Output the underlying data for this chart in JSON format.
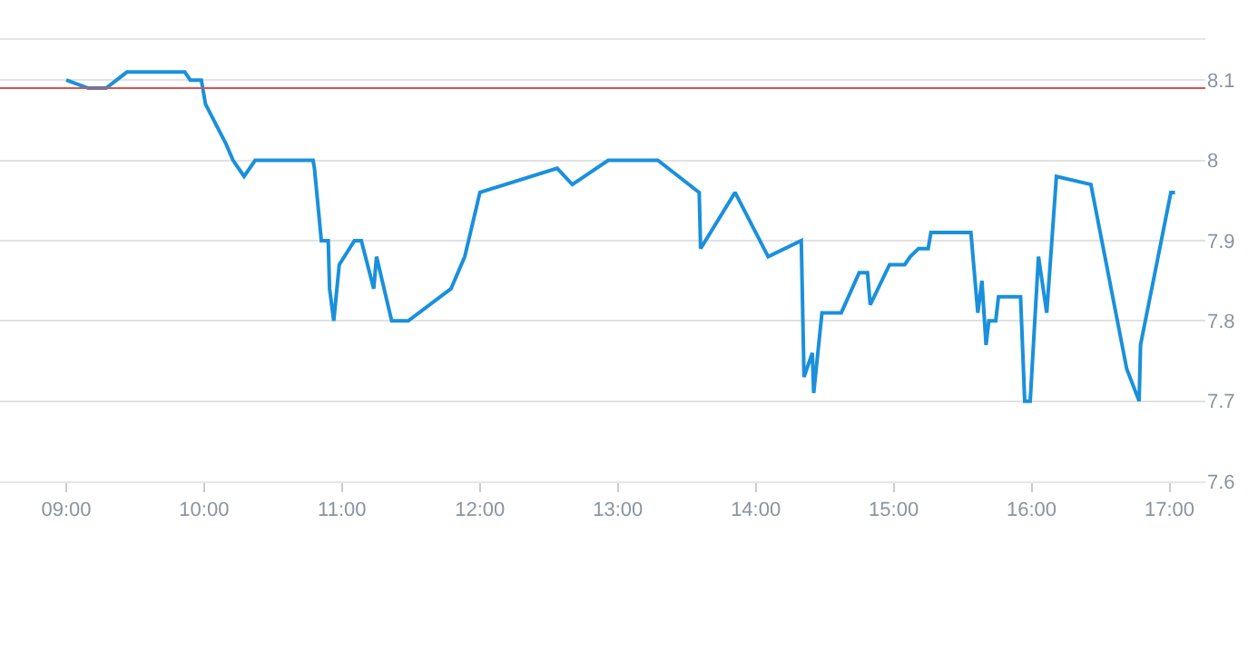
{
  "chart_data": {
    "type": "line",
    "x": [
      9.0,
      9.16,
      9.29,
      9.44,
      9.86,
      9.9,
      9.98,
      10.01,
      10.16,
      10.21,
      10.29,
      10.37,
      10.79,
      10.8,
      10.85,
      10.9,
      10.91,
      10.94,
      10.98,
      11.09,
      11.14,
      11.23,
      11.25,
      11.36,
      11.48,
      11.79,
      11.89,
      12.0,
      12.56,
      12.67,
      12.93,
      13.29,
      13.59,
      13.6,
      13.85,
      14.09,
      14.33,
      14.35,
      14.41,
      14.42,
      14.48,
      14.62,
      14.75,
      14.81,
      14.83,
      14.97,
      15.08,
      15.12,
      15.18,
      15.25,
      15.27,
      15.56,
      15.61,
      15.64,
      15.67,
      15.69,
      15.74,
      15.76,
      15.92,
      15.95,
      15.99,
      16.05,
      16.11,
      16.18,
      16.43,
      16.69,
      16.78,
      16.79,
      17.01,
      17.04
    ],
    "series": [
      {
        "color": "#1a90dc",
        "values": [
          8.1,
          8.09,
          8.09,
          8.11,
          8.11,
          8.1,
          8.1,
          8.07,
          8.02,
          8.0,
          7.98,
          8.0,
          8.0,
          7.99,
          7.9,
          7.9,
          7.84,
          7.8,
          7.87,
          7.9,
          7.9,
          7.84,
          7.88,
          7.8,
          7.8,
          7.84,
          7.88,
          7.96,
          7.99,
          7.97,
          8.0,
          8.0,
          7.96,
          7.89,
          7.96,
          7.88,
          7.9,
          7.73,
          7.76,
          7.71,
          7.81,
          7.81,
          7.86,
          7.86,
          7.82,
          7.87,
          7.87,
          7.88,
          7.89,
          7.89,
          7.91,
          7.91,
          7.81,
          7.85,
          7.77,
          7.8,
          7.8,
          7.83,
          7.83,
          7.7,
          7.7,
          7.88,
          7.81,
          7.98,
          7.97,
          7.74,
          7.7,
          7.77,
          7.96,
          7.96
        ]
      }
    ],
    "xlim": [
      8.52,
      17.26
    ],
    "xticks": [
      {
        "value": 9,
        "label": "09:00"
      },
      {
        "value": 10,
        "label": "10:00"
      },
      {
        "value": 11,
        "label": "11:00"
      },
      {
        "value": 12,
        "label": "12:00"
      },
      {
        "value": 13,
        "label": "13:00"
      },
      {
        "value": 14,
        "label": "14:00"
      },
      {
        "value": 15,
        "label": "15:00"
      },
      {
        "value": 16,
        "label": "16:00"
      },
      {
        "value": 17,
        "label": "17:00"
      }
    ],
    "ylim": [
      7.6,
      8.15
    ],
    "yticks": [
      7.6,
      7.7,
      7.8,
      7.9,
      8,
      8.1
    ],
    "grid": "y",
    "marker": "none",
    "line_style": "solid",
    "ref_lines": [
      {
        "axis": "y",
        "value": 8.09,
        "color": "#d9534f"
      }
    ]
  }
}
